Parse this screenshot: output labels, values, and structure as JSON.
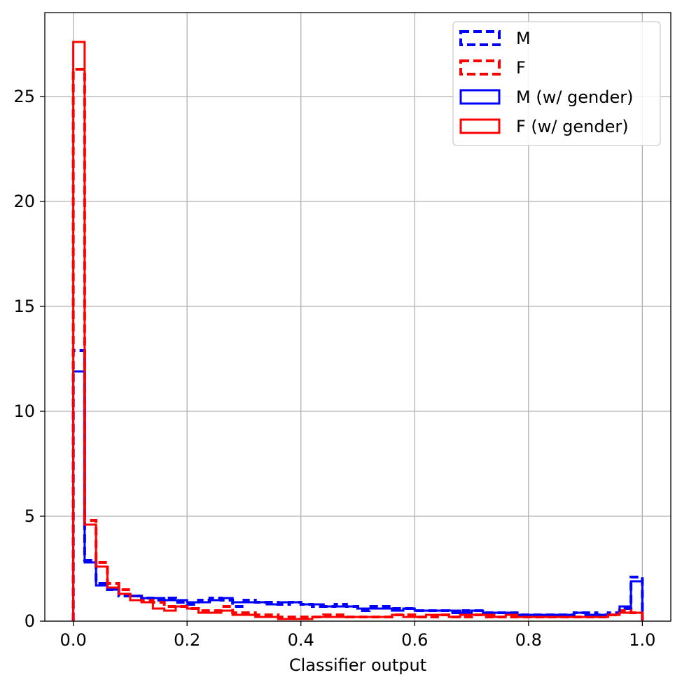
{
  "chart_data": {
    "type": "histogram",
    "xlabel": "Classifier output",
    "ylabel": "",
    "xlim": [
      -0.05,
      1.05
    ],
    "ylim": [
      0,
      29
    ],
    "grid": true,
    "legend_position": "top-right",
    "x_ticks": [
      "0.0",
      "0.2",
      "0.4",
      "0.6",
      "0.8",
      "1.0"
    ],
    "y_ticks": [
      "0",
      "5",
      "10",
      "15",
      "20",
      "25"
    ],
    "bin_width": 0.02,
    "bin_start": 0.0,
    "series": [
      {
        "name": "M",
        "color": "#0000ff",
        "linestyle": "dashed",
        "values": [
          12.9,
          2.9,
          1.8,
          1.5,
          1.2,
          1.2,
          1.1,
          1.0,
          1.1,
          0.9,
          0.8,
          1.0,
          1.1,
          1.0,
          0.7,
          1.0,
          0.9,
          0.9,
          0.8,
          0.9,
          0.8,
          0.7,
          0.7,
          0.8,
          0.7,
          0.5,
          0.7,
          0.7,
          0.6,
          0.6,
          0.5,
          0.5,
          0.5,
          0.4,
          0.5,
          0.5,
          0.4,
          0.4,
          0.4,
          0.3,
          0.3,
          0.3,
          0.3,
          0.3,
          0.4,
          0.4,
          0.3,
          0.4,
          0.6,
          2.1
        ]
      },
      {
        "name": "F",
        "color": "#ff0000",
        "linestyle": "dashed",
        "values": [
          26.3,
          4.8,
          2.8,
          1.8,
          1.5,
          1.2,
          1.0,
          0.9,
          0.7,
          0.7,
          0.6,
          0.5,
          0.5,
          0.7,
          0.4,
          0.4,
          0.3,
          0.3,
          0.2,
          0.2,
          0.2,
          0.2,
          0.3,
          0.3,
          0.2,
          0.2,
          0.2,
          0.2,
          0.3,
          0.3,
          0.2,
          0.2,
          0.3,
          0.2,
          0.2,
          0.3,
          0.2,
          0.2,
          0.2,
          0.2,
          0.2,
          0.2,
          0.2,
          0.2,
          0.2,
          0.2,
          0.2,
          0.3,
          0.5,
          0.4
        ]
      },
      {
        "name": "M (w/ gender)",
        "color": "#0000ff",
        "linestyle": "solid",
        "values": [
          11.9,
          2.8,
          1.7,
          1.5,
          1.3,
          1.2,
          1.1,
          1.1,
          1.0,
          1.0,
          0.9,
          0.9,
          1.0,
          1.1,
          0.9,
          0.9,
          0.9,
          0.8,
          0.9,
          0.9,
          0.8,
          0.8,
          0.7,
          0.7,
          0.7,
          0.6,
          0.6,
          0.6,
          0.5,
          0.6,
          0.5,
          0.5,
          0.5,
          0.5,
          0.4,
          0.5,
          0.4,
          0.4,
          0.4,
          0.3,
          0.3,
          0.3,
          0.3,
          0.3,
          0.4,
          0.3,
          0.3,
          0.3,
          0.7,
          1.9
        ]
      },
      {
        "name": "F (w/ gender)",
        "color": "#ff0000",
        "linestyle": "solid",
        "values": [
          27.6,
          4.6,
          2.6,
          1.6,
          1.3,
          1.0,
          0.9,
          0.6,
          0.5,
          0.7,
          0.6,
          0.4,
          0.4,
          0.5,
          0.3,
          0.3,
          0.2,
          0.2,
          0.1,
          0.1,
          0.1,
          0.2,
          0.2,
          0.2,
          0.2,
          0.2,
          0.2,
          0.2,
          0.3,
          0.2,
          0.2,
          0.3,
          0.3,
          0.2,
          0.3,
          0.3,
          0.3,
          0.2,
          0.3,
          0.2,
          0.2,
          0.2,
          0.2,
          0.2,
          0.2,
          0.2,
          0.2,
          0.3,
          0.4,
          0.4
        ]
      }
    ]
  }
}
